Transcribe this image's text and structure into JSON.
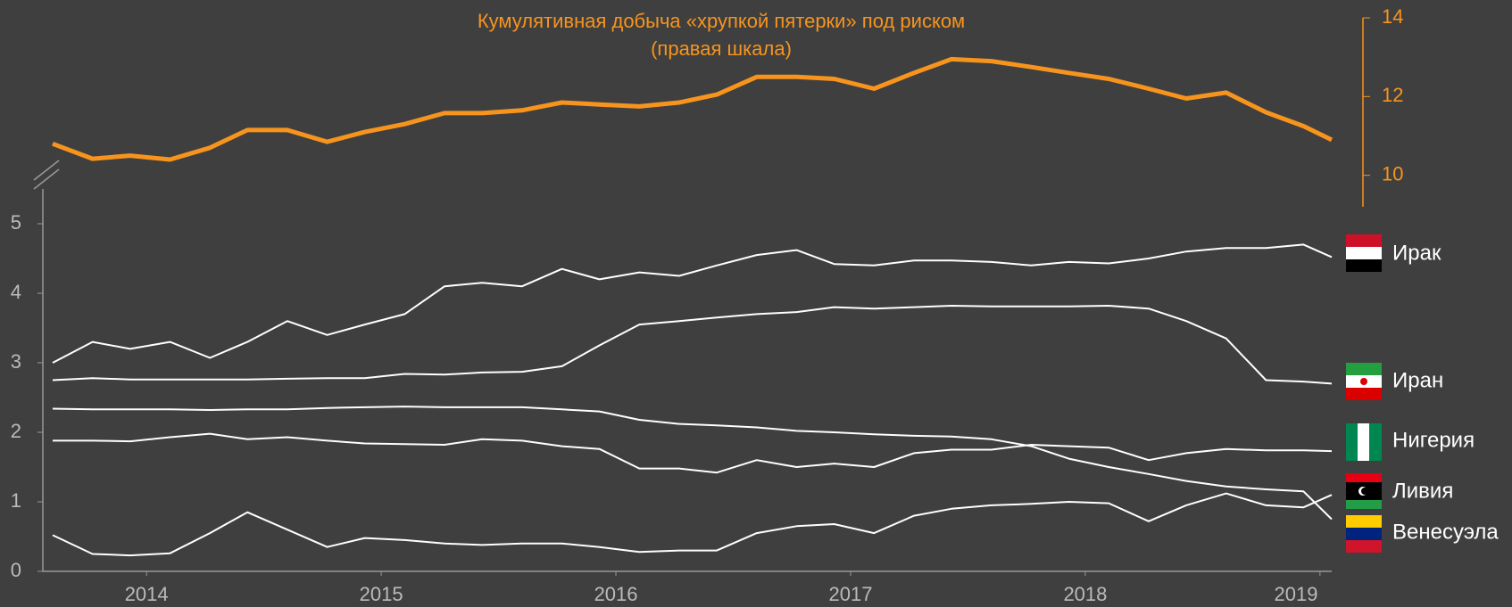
{
  "chart_data": {
    "type": "line",
    "title": "Кумулятивная добыча «хрупкой пятерки» под риском",
    "subtitle": "(правая шкала)",
    "x": [
      2013.6,
      2013.77,
      2013.93,
      2014.1,
      2014.27,
      2014.43,
      2014.6,
      2014.77,
      2014.93,
      2015.1,
      2015.27,
      2015.43,
      2015.6,
      2015.77,
      2015.93,
      2016.1,
      2016.27,
      2016.43,
      2016.6,
      2016.77,
      2016.93,
      2017.1,
      2017.27,
      2017.43,
      2017.6,
      2017.77,
      2017.93,
      2018.1,
      2018.27,
      2018.43,
      2018.6,
      2018.77,
      2018.93,
      2019.05
    ],
    "xlim": [
      2013.6,
      2019.05
    ],
    "xticks": [
      2014,
      2015,
      2016,
      2017,
      2018,
      2019
    ],
    "ylim": [
      0,
      5.5
    ],
    "yticks": [
      0,
      1,
      2,
      3,
      4,
      5
    ],
    "y2lim": [
      9.2,
      14
    ],
    "y2ticks": [
      10,
      12,
      14
    ],
    "series": [
      {
        "name": "Ирак",
        "color": "#ffffff",
        "values": [
          3.0,
          3.3,
          3.2,
          3.3,
          3.07,
          3.3,
          3.6,
          3.4,
          3.55,
          3.7,
          4.1,
          4.15,
          4.1,
          4.35,
          4.2,
          4.3,
          4.25,
          4.4,
          4.55,
          4.62,
          4.42,
          4.4,
          4.47,
          4.47,
          4.45,
          4.4,
          4.45,
          4.43,
          4.5,
          4.6,
          4.65,
          4.65,
          4.7,
          4.52
        ]
      },
      {
        "name": "Иран",
        "color": "#ffffff",
        "values": [
          2.75,
          2.78,
          2.76,
          2.76,
          2.76,
          2.76,
          2.77,
          2.78,
          2.78,
          2.84,
          2.83,
          2.86,
          2.87,
          2.95,
          3.25,
          3.55,
          3.6,
          3.65,
          3.7,
          3.73,
          3.8,
          3.78,
          3.8,
          3.82,
          3.81,
          3.81,
          3.81,
          3.82,
          3.78,
          3.6,
          3.35,
          2.75,
          2.73,
          2.7
        ]
      },
      {
        "name": "Нигерия",
        "color": "#ffffff",
        "values": [
          1.88,
          1.88,
          1.87,
          1.93,
          1.98,
          1.9,
          1.93,
          1.88,
          1.84,
          1.83,
          1.82,
          1.9,
          1.88,
          1.8,
          1.76,
          1.48,
          1.48,
          1.42,
          1.6,
          1.5,
          1.55,
          1.5,
          1.7,
          1.75,
          1.75,
          1.82,
          1.8,
          1.78,
          1.6,
          1.7,
          1.76,
          1.74,
          1.74,
          1.73
        ]
      },
      {
        "name": "Ливия",
        "color": "#ffffff",
        "values": [
          0.52,
          0.25,
          0.23,
          0.26,
          0.55,
          0.85,
          0.6,
          0.35,
          0.48,
          0.45,
          0.4,
          0.38,
          0.4,
          0.4,
          0.35,
          0.28,
          0.3,
          0.3,
          0.55,
          0.65,
          0.68,
          0.55,
          0.8,
          0.9,
          0.95,
          0.97,
          1.0,
          0.98,
          0.72,
          0.95,
          1.12,
          0.95,
          0.92,
          1.1
        ]
      },
      {
        "name": "Венесуэла",
        "color": "#ffffff",
        "values": [
          2.34,
          2.33,
          2.33,
          2.33,
          2.32,
          2.33,
          2.33,
          2.35,
          2.36,
          2.37,
          2.36,
          2.36,
          2.36,
          2.33,
          2.3,
          2.18,
          2.12,
          2.1,
          2.07,
          2.02,
          2.0,
          1.97,
          1.95,
          1.94,
          1.9,
          1.8,
          1.62,
          1.5,
          1.4,
          1.3,
          1.22,
          1.18,
          1.15,
          0.75
        ]
      },
      {
        "color": "#f7941d",
        "axis": "y2",
        "values": [
          10.8,
          10.42,
          10.5,
          10.4,
          10.7,
          11.15,
          11.15,
          10.85,
          11.1,
          11.3,
          11.58,
          11.58,
          11.65,
          11.85,
          11.8,
          11.75,
          11.85,
          12.05,
          12.5,
          12.5,
          12.45,
          12.2,
          12.6,
          12.95,
          12.9,
          12.75,
          12.6,
          12.45,
          12.2,
          11.95,
          12.1,
          11.6,
          11.25,
          10.9
        ]
      }
    ]
  }
}
